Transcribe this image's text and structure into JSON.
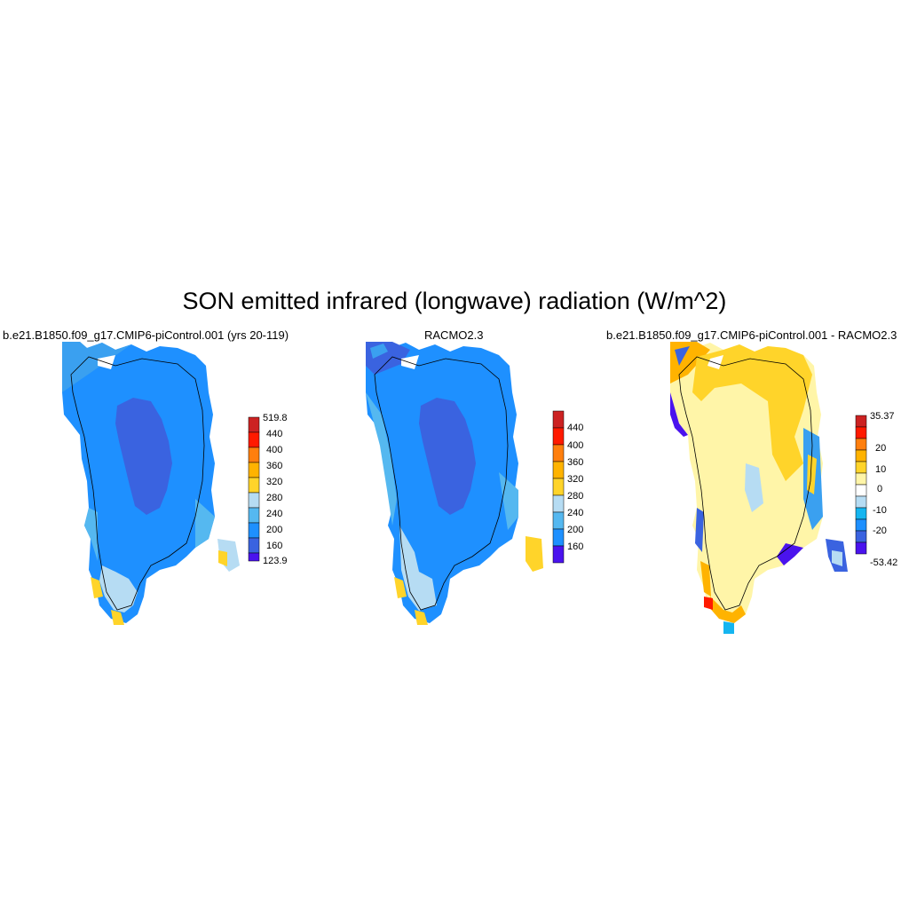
{
  "title": "SON emitted infrared (longwave) radiation (W/m^2)",
  "colors": {
    "dark_purple": "#4a13ee",
    "royal_blue": "#3a63e0",
    "blue": "#1e90ff",
    "medium_blue": "#3aa0f0",
    "sky_blue": "#55b8f0",
    "light_blue": "#b6dcf3",
    "pale_yellow": "#fff5a8",
    "yellow": "#ffd42a",
    "gold": "#ffb300",
    "orange": "#ff7f0e",
    "red": "#ff1a00",
    "dark_red": "#cc2222",
    "diff_cyan": "#15b5f0",
    "diff_white": "#ffffff"
  },
  "panels": [
    {
      "id": "model",
      "title": "b.e21.B1850.f09_g17.CMIP6-piControl.001 (yrs 20-119)",
      "colorbar_labels": [
        "519.8",
        "440",
        "400",
        "360",
        "320",
        "280",
        "240",
        "200",
        "160",
        "123.9"
      ]
    },
    {
      "id": "obs",
      "title": "RACMO2.3",
      "colorbar_labels": [
        "440",
        "400",
        "360",
        "320",
        "280",
        "240",
        "200",
        "160"
      ]
    },
    {
      "id": "diff",
      "title": "b.e21.B1850.f09_g17.CMIP6-piControl.001 - RACMO2.3",
      "colorbar_labels": [
        "35.37",
        "20",
        "10",
        "0",
        "-10",
        "-20",
        "-53.42"
      ]
    }
  ]
}
